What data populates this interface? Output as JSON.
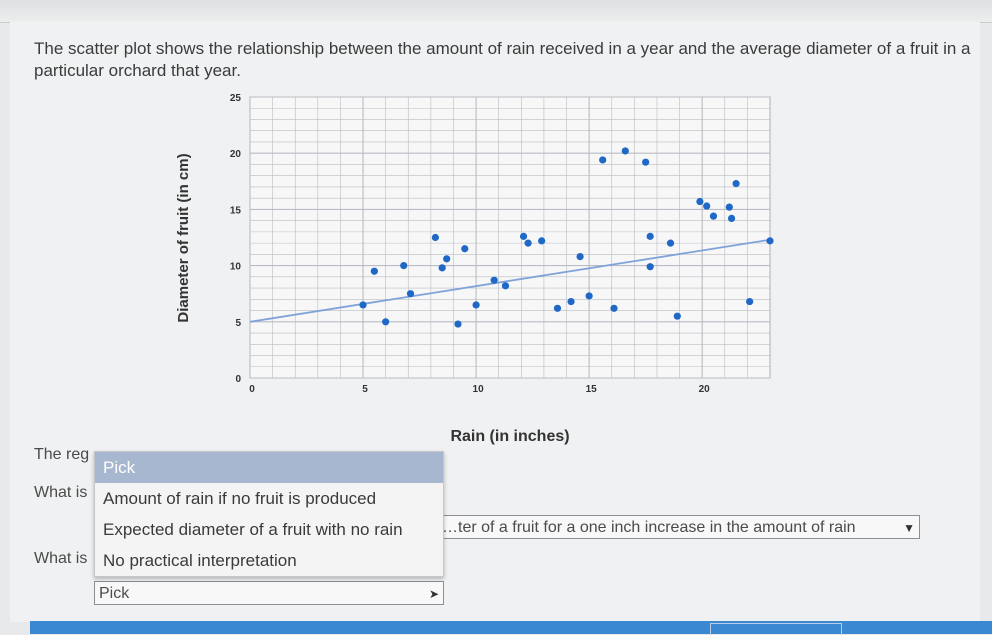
{
  "question": {
    "text": "The scatter plot shows the relationship between the amount of rain received in a year and the average diameter of a fruit in a particular orchard that year."
  },
  "chart_data": {
    "type": "scatter",
    "xlabel": "Rain (in inches)",
    "ylabel": "Diameter of fruit (in cm)",
    "xlim": [
      0,
      23
    ],
    "ylim": [
      0,
      25
    ],
    "x_ticks": [
      "0",
      "5",
      "10",
      "15",
      "20"
    ],
    "y_ticks": [
      "0",
      "5",
      "10",
      "15",
      "20",
      "25"
    ],
    "grid": true,
    "points": [
      [
        5,
        6.5
      ],
      [
        5.5,
        9.5
      ],
      [
        6,
        5
      ],
      [
        6.8,
        10
      ],
      [
        7.1,
        7.5
      ],
      [
        8.2,
        12.5
      ],
      [
        8.5,
        9.8
      ],
      [
        8.7,
        10.6
      ],
      [
        9.2,
        4.8
      ],
      [
        9.5,
        11.5
      ],
      [
        10,
        6.5
      ],
      [
        10.8,
        8.7
      ],
      [
        11.3,
        8.2
      ],
      [
        12.1,
        12.6
      ],
      [
        12.3,
        12
      ],
      [
        12.9,
        12.2
      ],
      [
        13.6,
        6.2
      ],
      [
        14.2,
        6.8
      ],
      [
        14.6,
        10.8
      ],
      [
        15,
        7.3
      ],
      [
        15.6,
        19.4
      ],
      [
        16.1,
        6.2
      ],
      [
        16.6,
        20.2
      ],
      [
        17.5,
        19.2
      ],
      [
        17.7,
        12.6
      ],
      [
        17.7,
        9.9
      ],
      [
        18.6,
        12
      ],
      [
        18.9,
        5.5
      ],
      [
        19.9,
        15.7
      ],
      [
        20.2,
        15.3
      ],
      [
        20.5,
        14.4
      ],
      [
        21.2,
        15.2
      ],
      [
        21.3,
        14.2
      ],
      [
        21.5,
        17.3
      ],
      [
        22.1,
        6.8
      ],
      [
        23,
        12.2
      ]
    ],
    "regression_line": {
      "from": [
        0,
        5
      ],
      "to": [
        23,
        12.3
      ]
    }
  },
  "partial_texts": {
    "line1": "The reg",
    "line2": "What is",
    "line3": "What is"
  },
  "dropdown_open": {
    "options": [
      "Pick",
      "Amount of rain if no fruit is produced",
      "Expected diameter of a fruit with no rain",
      "No practical interpretation"
    ]
  },
  "select_slope": {
    "value": "…ter of a fruit for a one inch increase in the amount of rain"
  },
  "select_intercept": {
    "value": "Pick"
  },
  "colors": {
    "point": "#1f68c6",
    "regression": "#7fa3d8",
    "grid": "#b9bcc2",
    "highlight": "#a7b7cf",
    "bottom_bar": "#3a88d2"
  }
}
